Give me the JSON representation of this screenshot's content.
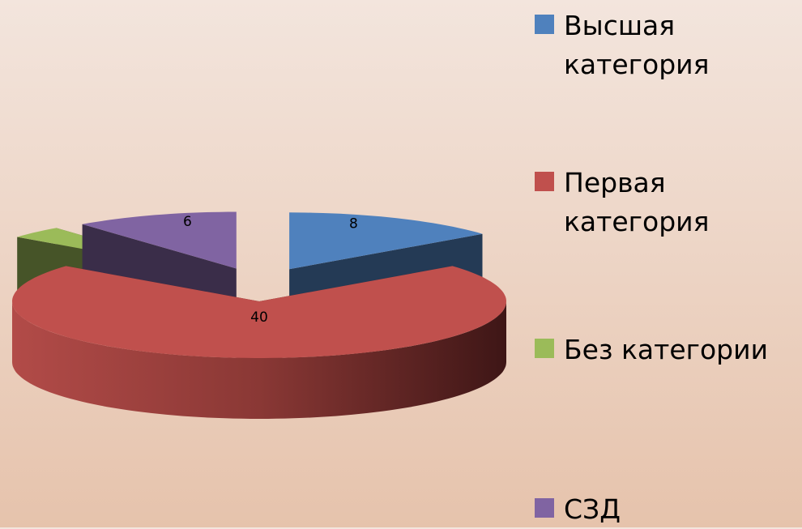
{
  "chart_data": {
    "type": "pie",
    "categories": [
      "Высшая категория",
      "Первая категория",
      "Без категории",
      "СЗД"
    ],
    "values": [
      8,
      40,
      2,
      6
    ],
    "colors": [
      "#4f81bd",
      "#c0504d",
      "#9bbb59",
      "#8064a2"
    ],
    "legend": "right"
  }
}
